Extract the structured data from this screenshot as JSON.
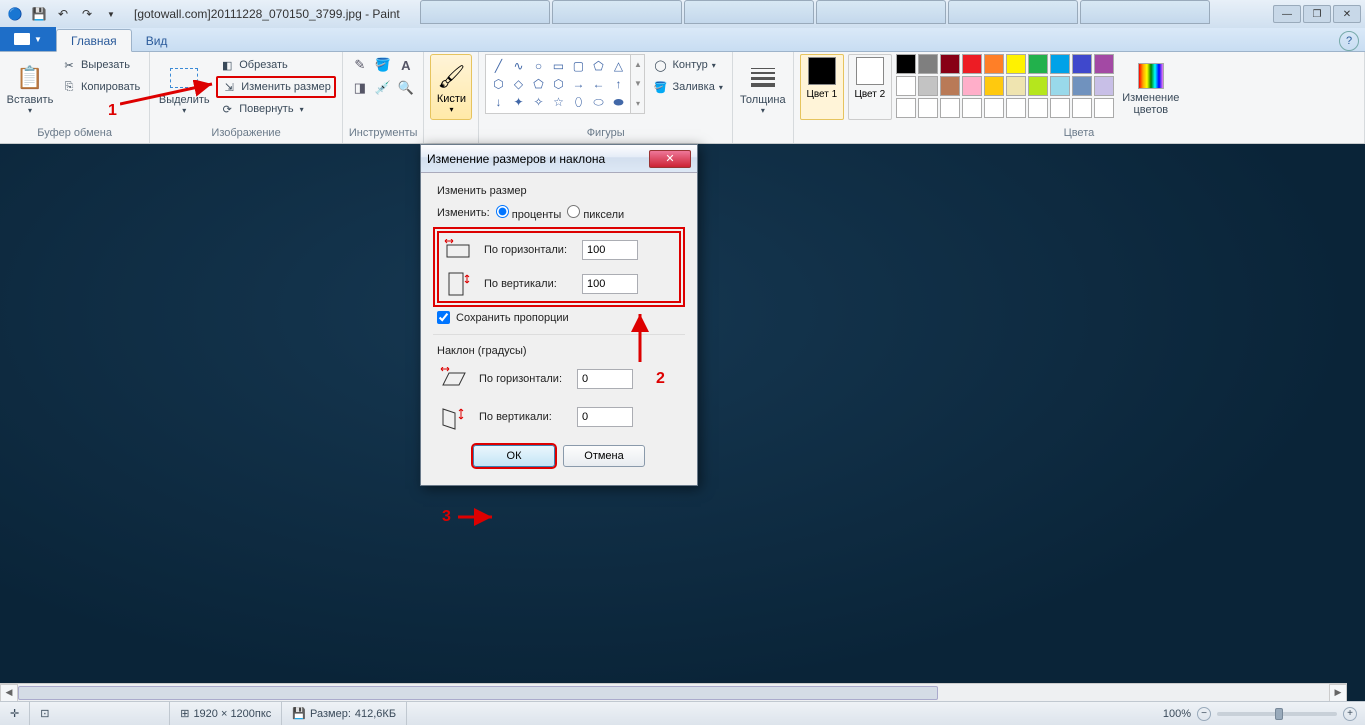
{
  "title": "[gotowall.com]20111228_070150_3799.jpg - Paint",
  "ribbon": {
    "file_label": "",
    "tabs": {
      "home": "Главная",
      "view": "Вид"
    },
    "clipboard": {
      "paste": "Вставить",
      "cut": "Вырезать",
      "copy": "Копировать",
      "label": "Буфер обмена"
    },
    "image": {
      "select": "Выделить",
      "crop": "Обрезать",
      "resize": "Изменить размер",
      "rotate": "Повернуть",
      "label": "Изображение"
    },
    "tools": {
      "label": "Инструменты"
    },
    "brushes": {
      "label": "Кисти"
    },
    "shapes": {
      "outline": "Контур",
      "fill": "Заливка",
      "label": "Фигуры"
    },
    "size": {
      "label": "Толщина"
    },
    "colors": {
      "color1": "Цвет 1",
      "color2": "Цвет 2",
      "edit": "Изменение цветов",
      "label": "Цвета",
      "palette_row1": [
        "#000000",
        "#7f7f7f",
        "#880015",
        "#ed1c24",
        "#ff7f27",
        "#fff200",
        "#22b14c",
        "#00a2e8",
        "#3f48cc",
        "#a349a4"
      ],
      "palette_row2": [
        "#ffffff",
        "#c3c3c3",
        "#b97a57",
        "#ffaec9",
        "#ffc90e",
        "#efe4b0",
        "#b5e61d",
        "#99d9ea",
        "#7092be",
        "#c8bfe7"
      ],
      "palette_row3": [
        "#ffffff",
        "#ffffff",
        "#ffffff",
        "#ffffff",
        "#ffffff",
        "#ffffff",
        "#ffffff",
        "#ffffff",
        "#ffffff",
        "#ffffff"
      ],
      "c1_value": "#000000",
      "c2_value": "#ffffff"
    }
  },
  "dialog": {
    "title": "Изменение размеров и наклона",
    "resize_section": "Изменить размер",
    "by_label": "Изменить:",
    "opt_percent": "проценты",
    "opt_pixels": "пиксели",
    "horizontal": "По горизонтали:",
    "vertical": "По вертикали:",
    "h_value": "100",
    "v_value": "100",
    "aspect": "Сохранить пропорции",
    "skew_section": "Наклон (градусы)",
    "skew_h": "0",
    "skew_v": "0",
    "ok": "ОК",
    "cancel": "Отмена"
  },
  "status": {
    "dims": "1920 × 1200пкс",
    "size_label": "Размер:",
    "size": "412,6КБ",
    "zoom": "100%"
  },
  "annotations": {
    "n1": "1",
    "n2": "2",
    "n3": "3"
  }
}
